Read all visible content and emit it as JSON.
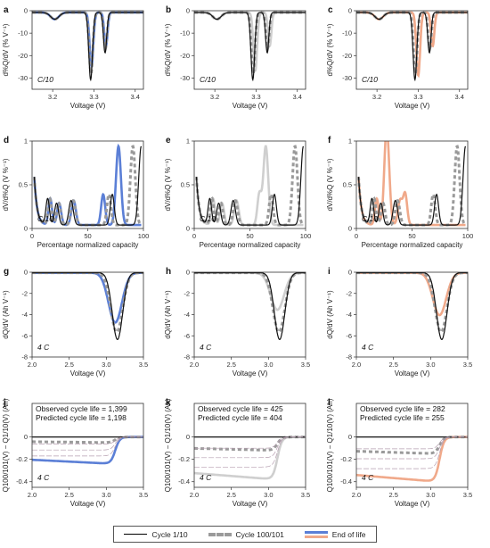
{
  "legend": [
    {
      "label": "Cycle 1/10",
      "color": "#000000",
      "style": "solid"
    },
    {
      "label": "Cycle 100/101",
      "color": "#9a9a9a",
      "style": "dashed"
    },
    {
      "label": "End of life",
      "color": "#5b7fd6",
      "style": "solid"
    }
  ],
  "end_of_life_colors": {
    "a": "#5b7fd6",
    "b": "#cfcfcf",
    "c": "#f0a98a"
  },
  "chart_data": [
    {
      "panel": "a",
      "type": "line",
      "xlabel": "Voltage (V)",
      "ylabel": "d%Q/dV (% V⁻¹)",
      "xlim": [
        3.15,
        3.42
      ],
      "ylim": [
        -35,
        0
      ],
      "xticks": [
        3.2,
        3.3,
        3.4
      ],
      "yticks": [
        0,
        -10,
        -20,
        -30
      ],
      "annotation": "C/10",
      "eol_color": "#5b7fd6"
    },
    {
      "panel": "b",
      "type": "line",
      "xlabel": "Voltage (V)",
      "ylabel": "d%Q/dV (% V⁻¹)",
      "xlim": [
        3.15,
        3.42
      ],
      "ylim": [
        -35,
        0
      ],
      "xticks": [
        3.2,
        3.3,
        3.4
      ],
      "yticks": [
        0,
        -10,
        -20,
        -30
      ],
      "annotation": "C/10",
      "eol_color": "#cfcfcf"
    },
    {
      "panel": "c",
      "type": "line",
      "xlabel": "Voltage (V)",
      "ylabel": "d%Q/dV (% V⁻¹)",
      "xlim": [
        3.15,
        3.42
      ],
      "ylim": [
        -35,
        0
      ],
      "xticks": [
        3.2,
        3.3,
        3.4
      ],
      "yticks": [
        0,
        -10,
        -20,
        -30
      ],
      "annotation": "C/10",
      "eol_color": "#f0a98a"
    },
    {
      "panel": "d",
      "type": "line",
      "xlabel": "Percentage normalized capacity",
      "ylabel": "dV/d%Q (V %⁻¹)",
      "xlim": [
        0,
        100
      ],
      "ylim": [
        0,
        1.0
      ],
      "xticks": [
        0,
        50,
        100
      ],
      "yticks": [
        0,
        0.5,
        1.0
      ],
      "annotation": "C/10",
      "eol_color": "#5b7fd6"
    },
    {
      "panel": "e",
      "type": "line",
      "xlabel": "Percentage normalized capacity",
      "ylabel": "dV/d%Q (V %⁻¹)",
      "xlim": [
        0,
        100
      ],
      "ylim": [
        0,
        1.0
      ],
      "xticks": [
        0,
        50,
        100
      ],
      "yticks": [
        0,
        0.5,
        1.0
      ],
      "annotation": "C/10",
      "eol_color": "#cfcfcf"
    },
    {
      "panel": "f",
      "type": "line",
      "xlabel": "Percentage normalized capacity",
      "ylabel": "dV/d%Q (V %⁻¹)",
      "xlim": [
        0,
        100
      ],
      "ylim": [
        0,
        1.0
      ],
      "xticks": [
        0,
        50,
        100
      ],
      "yticks": [
        0,
        0.5,
        1.0
      ],
      "annotation": "C/10",
      "eol_color": "#f0a98a"
    },
    {
      "panel": "g",
      "type": "line",
      "xlabel": "Voltage (V)",
      "ylabel": "dQ/dV (Ah V⁻¹)",
      "xlim": [
        2.0,
        3.5
      ],
      "ylim": [
        -8,
        0
      ],
      "xticks": [
        2.0,
        2.5,
        3.0,
        3.5
      ],
      "yticks": [
        0,
        -2,
        -4,
        -6,
        -8
      ],
      "annotation": "4 C",
      "eol_color": "#5b7fd6"
    },
    {
      "panel": "h",
      "type": "line",
      "xlabel": "Voltage (V)",
      "ylabel": "dQ/dV (Ah V⁻¹)",
      "xlim": [
        2.0,
        3.5
      ],
      "ylim": [
        -8,
        0
      ],
      "xticks": [
        2.0,
        2.5,
        3.0,
        3.5
      ],
      "yticks": [
        0,
        -2,
        -4,
        -6,
        -8
      ],
      "annotation": "4 C",
      "eol_color": "#cfcfcf"
    },
    {
      "panel": "i",
      "type": "line",
      "xlabel": "Voltage (V)",
      "ylabel": "dQ/dV (Ah V⁻¹)",
      "xlim": [
        2.0,
        3.5
      ],
      "ylim": [
        -8,
        0
      ],
      "xticks": [
        2.0,
        2.5,
        3.0,
        3.5
      ],
      "yticks": [
        0,
        -2,
        -4,
        -6,
        -8
      ],
      "annotation": "4 C",
      "eol_color": "#f0a98a"
    },
    {
      "panel": "j",
      "type": "line",
      "xlabel": "Voltage (V)",
      "ylabel": "Q100/101(V) − Q1/10(V) (Ah)",
      "xlim": [
        2.0,
        3.5
      ],
      "ylim": [
        -0.45,
        0.3
      ],
      "xticks": [
        2.0,
        2.5,
        3.0,
        3.5
      ],
      "yticks": [
        0,
        -0.2,
        -0.4
      ],
      "annotation": "4 C",
      "eol_color": "#5b7fd6",
      "observed": "Observed cycle life = 1,399",
      "predicted": "Predicted cycle life = 1,198"
    },
    {
      "panel": "k",
      "type": "line",
      "xlabel": "Voltage (V)",
      "ylabel": "Q100/101(V) − Q1/10(V) (Ah)",
      "xlim": [
        2.0,
        3.5
      ],
      "ylim": [
        -0.45,
        0.3
      ],
      "xticks": [
        2.0,
        2.5,
        3.0,
        3.5
      ],
      "yticks": [
        0,
        -0.2,
        -0.4
      ],
      "annotation": "4 C",
      "eol_color": "#cfcfcf",
      "observed": "Observed cycle life = 425",
      "predicted": "Predicted cycle life = 404"
    },
    {
      "panel": "l",
      "type": "line",
      "xlabel": "Voltage (V)",
      "ylabel": "Q100/101(V) − Q1/10(V) (Ah)",
      "xlim": [
        2.0,
        3.5
      ],
      "ylim": [
        -0.45,
        0.3
      ],
      "xticks": [
        2.0,
        2.5,
        3.0,
        3.5
      ],
      "yticks": [
        0,
        -0.2,
        -0.4
      ],
      "annotation": "4 C",
      "eol_color": "#f0a98a",
      "observed": "Observed cycle life = 282",
      "predicted": "Predicted cycle life = 255"
    }
  ]
}
